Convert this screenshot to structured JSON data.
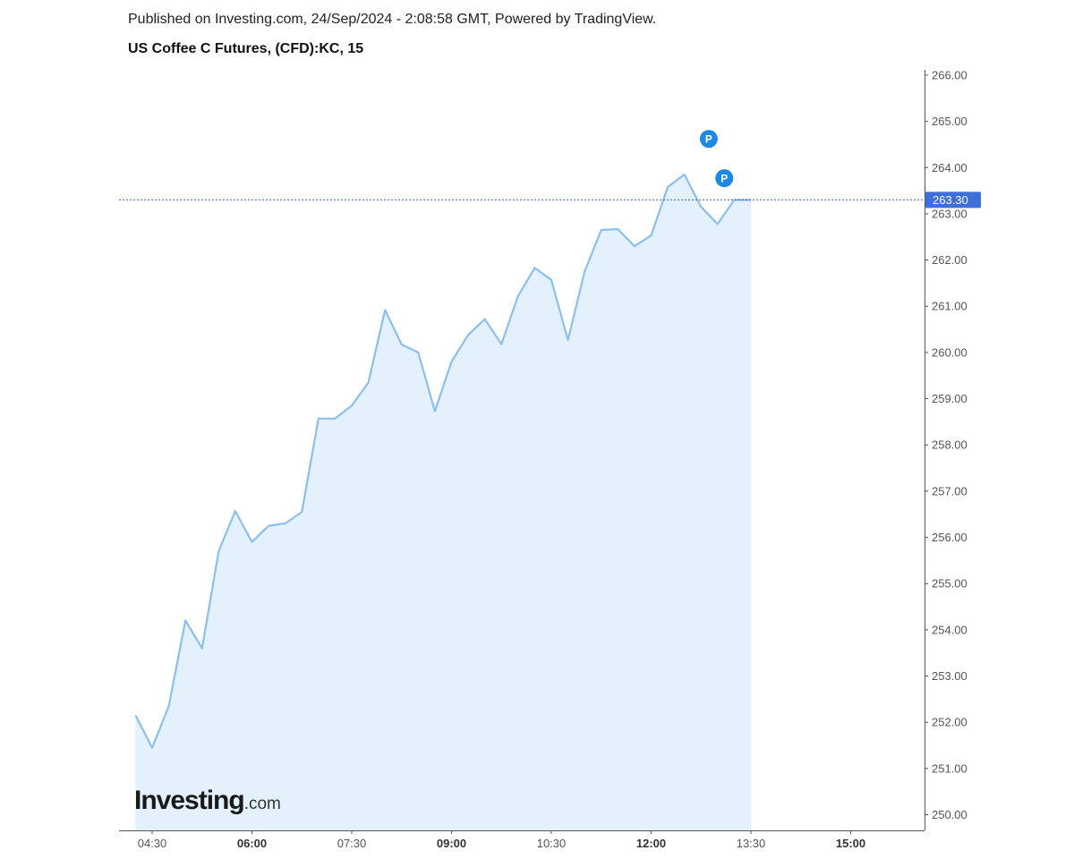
{
  "header": {
    "published": "Published on Investing.com, 24/Sep/2024 - 2:08:58 GMT, Powered by TradingView.",
    "symbol": "US Coffee C Futures, (CFD):KC, 15"
  },
  "logo": {
    "main": "Investing",
    "suffix": ".com"
  },
  "colors": {
    "line": "#8dbfee",
    "area": "#e2f1fb",
    "price_line": "#2f5fd0",
    "price_label_bg": "#3d6fd6",
    "marker": "#1e88e5"
  },
  "chart_data": {
    "type": "area",
    "title": "US Coffee C Futures, (CFD):KC, 15",
    "xlabel": "",
    "ylabel": "",
    "ylim": [
      249.7,
      266.1
    ],
    "x_tick_labels": [
      "04:30",
      "06:00",
      "07:30",
      "09:00",
      "10:30",
      "12:00",
      "13:30",
      "15:00"
    ],
    "x_tick_bold": [
      false,
      true,
      false,
      true,
      false,
      true,
      false,
      true
    ],
    "x_range_minutes": [
      255,
      945
    ],
    "y_tick_labels": [
      "250.00",
      "251.00",
      "252.00",
      "253.00",
      "254.00",
      "255.00",
      "256.00",
      "257.00",
      "258.00",
      "259.00",
      "260.00",
      "261.00",
      "262.00",
      "263.00",
      "264.00",
      "265.00",
      "266.00"
    ],
    "y_ticks": [
      250,
      251,
      252,
      253,
      254,
      255,
      256,
      257,
      258,
      259,
      260,
      261,
      262,
      263,
      264,
      265,
      266
    ],
    "series": [
      {
        "x_minutes": [
          255,
          270,
          285,
          300,
          315,
          330,
          345,
          360,
          375,
          390,
          405,
          420,
          435,
          450,
          465,
          480,
          495,
          510,
          525,
          540,
          555,
          570,
          585,
          600,
          615,
          630,
          645,
          660,
          675,
          690,
          705,
          720,
          735,
          750,
          765,
          780,
          795,
          810
        ],
        "values": [
          252.15,
          251.45,
          252.35,
          254.2,
          253.6,
          255.7,
          256.57,
          255.9,
          256.25,
          256.3,
          256.55,
          258.57,
          258.57,
          258.85,
          259.35,
          260.92,
          260.17,
          260.0,
          258.73,
          259.8,
          260.38,
          260.72,
          260.18,
          261.22,
          261.83,
          261.57,
          260.27,
          261.75,
          262.65,
          262.67,
          262.3,
          262.53,
          263.58,
          263.85,
          263.15,
          262.78,
          263.3,
          263.3
        ]
      }
    ],
    "last_price_label": "263.30",
    "last_price": 263.3,
    "annotations": [
      {
        "label": "P",
        "x_minutes": 772,
        "value": 264.62
      },
      {
        "label": "P",
        "x_minutes": 786,
        "value": 263.77
      }
    ]
  }
}
